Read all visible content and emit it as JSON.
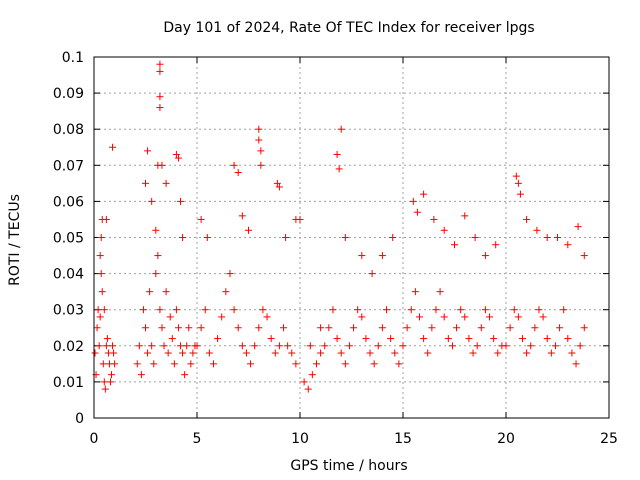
{
  "chart_data": {
    "type": "scatter",
    "title": "Day 101 of 2024, Rate Of TEC Index for receiver lpgs",
    "xlabel": "GPS time / hours",
    "ylabel": "ROTI / TECUs",
    "xlim": [
      0,
      25
    ],
    "ylim": [
      0,
      0.1
    ],
    "xticks": [
      0,
      5,
      10,
      15,
      20,
      25
    ],
    "yticks": [
      0,
      0.01,
      0.02,
      0.03,
      0.04,
      0.05,
      0.06,
      0.07,
      0.08,
      0.09,
      0.1
    ],
    "xtick_labels": [
      "0",
      "5",
      "10",
      "15",
      "20",
      "25"
    ],
    "ytick_labels": [
      "0",
      "0.01",
      "0.02",
      "0.03",
      "0.04",
      "0.05",
      "0.06",
      "0.07",
      "0.08",
      "0.09",
      "0.1"
    ],
    "grid": true,
    "marker": "+",
    "color": "#ff0000",
    "series": [
      {
        "name": "ROTI",
        "x": [
          0.05,
          0.1,
          0.15,
          0.2,
          0.25,
          0.3,
          0.35,
          0.4,
          0.45,
          0.5,
          0.55,
          0.6,
          0.65,
          0.7,
          0.75,
          0.8,
          0.85,
          0.9,
          0.95,
          1.0,
          0.3,
          0.35,
          0.4,
          0.5,
          0.6,
          0.9,
          2.1,
          2.2,
          2.3,
          2.4,
          2.5,
          2.6,
          2.7,
          2.8,
          2.9,
          3.0,
          3.1,
          3.2,
          3.3,
          3.4,
          3.5,
          3.6,
          3.7,
          3.8,
          3.9,
          4.0,
          4.1,
          4.2,
          4.3,
          4.4,
          4.5,
          4.6,
          4.7,
          4.8,
          4.9,
          2.5,
          2.6,
          2.8,
          3.0,
          3.1,
          3.2,
          3.2,
          3.2,
          3.2,
          3.3,
          3.5,
          4.0,
          4.1,
          4.2,
          4.3,
          5.0,
          5.2,
          5.4,
          5.6,
          5.8,
          6.0,
          6.2,
          6.4,
          6.6,
          6.8,
          7.0,
          7.2,
          7.4,
          7.6,
          7.8,
          8.0,
          8.2,
          8.4,
          8.6,
          8.8,
          9.0,
          9.2,
          9.4,
          9.6,
          9.8,
          5.2,
          5.5,
          6.8,
          7.0,
          7.2,
          7.5,
          8.0,
          8.0,
          8.1,
          8.1,
          8.9,
          9.0,
          9.3,
          9.8,
          10.0,
          10.2,
          10.4,
          10.6,
          10.8,
          11.0,
          11.2,
          11.4,
          11.6,
          11.8,
          12.0,
          12.2,
          12.4,
          12.6,
          12.8,
          13.0,
          13.2,
          13.4,
          13.6,
          13.8,
          14.0,
          14.2,
          14.4,
          14.6,
          14.8,
          10.5,
          11.0,
          11.8,
          11.9,
          12.0,
          12.2,
          13.0,
          13.5,
          14.0,
          14.5,
          15.0,
          15.2,
          15.4,
          15.6,
          15.8,
          16.0,
          16.2,
          16.4,
          16.6,
          16.8,
          17.0,
          17.2,
          17.4,
          17.6,
          17.8,
          18.0,
          18.2,
          18.4,
          18.6,
          18.8,
          19.0,
          19.2,
          19.4,
          19.6,
          19.8,
          15.5,
          15.7,
          16.0,
          16.5,
          17.0,
          17.5,
          18.0,
          18.5,
          19.0,
          19.5,
          20.0,
          20.2,
          20.4,
          20.6,
          20.8,
          21.0,
          21.2,
          21.4,
          21.6,
          21.8,
          22.0,
          22.2,
          22.4,
          22.6,
          22.8,
          23.0,
          23.2,
          23.4,
          23.6,
          23.8,
          20.5,
          20.6,
          20.7,
          21.0,
          21.5,
          22.0,
          22.5,
          23.0,
          23.5,
          23.8
        ],
        "y": [
          0.018,
          0.012,
          0.025,
          0.03,
          0.02,
          0.045,
          0.05,
          0.035,
          0.015,
          0.01,
          0.008,
          0.02,
          0.022,
          0.018,
          0.015,
          0.01,
          0.012,
          0.02,
          0.018,
          0.015,
          0.028,
          0.04,
          0.055,
          0.03,
          0.055,
          0.075,
          0.015,
          0.02,
          0.012,
          0.03,
          0.025,
          0.018,
          0.035,
          0.02,
          0.015,
          0.04,
          0.045,
          0.03,
          0.025,
          0.02,
          0.035,
          0.018,
          0.028,
          0.022,
          0.015,
          0.03,
          0.025,
          0.02,
          0.018,
          0.012,
          0.02,
          0.025,
          0.015,
          0.018,
          0.02,
          0.065,
          0.074,
          0.06,
          0.052,
          0.07,
          0.098,
          0.096,
          0.089,
          0.086,
          0.07,
          0.065,
          0.073,
          0.072,
          0.06,
          0.05,
          0.02,
          0.025,
          0.03,
          0.018,
          0.015,
          0.022,
          0.028,
          0.035,
          0.04,
          0.03,
          0.025,
          0.02,
          0.018,
          0.015,
          0.02,
          0.025,
          0.03,
          0.028,
          0.022,
          0.018,
          0.02,
          0.025,
          0.02,
          0.018,
          0.015,
          0.055,
          0.05,
          0.07,
          0.068,
          0.056,
          0.052,
          0.08,
          0.077,
          0.074,
          0.07,
          0.065,
          0.064,
          0.05,
          0.055,
          0.055,
          0.01,
          0.008,
          0.012,
          0.015,
          0.018,
          0.02,
          0.025,
          0.03,
          0.022,
          0.018,
          0.015,
          0.02,
          0.025,
          0.03,
          0.028,
          0.022,
          0.018,
          0.015,
          0.02,
          0.025,
          0.03,
          0.022,
          0.018,
          0.015,
          0.02,
          0.025,
          0.073,
          0.069,
          0.08,
          0.05,
          0.045,
          0.04,
          0.045,
          0.05,
          0.02,
          0.025,
          0.03,
          0.035,
          0.028,
          0.022,
          0.018,
          0.025,
          0.03,
          0.035,
          0.028,
          0.022,
          0.02,
          0.025,
          0.03,
          0.028,
          0.022,
          0.018,
          0.02,
          0.025,
          0.03,
          0.028,
          0.022,
          0.018,
          0.02,
          0.06,
          0.057,
          0.062,
          0.055,
          0.052,
          0.048,
          0.056,
          0.05,
          0.045,
          0.048,
          0.02,
          0.025,
          0.03,
          0.028,
          0.022,
          0.018,
          0.02,
          0.025,
          0.03,
          0.028,
          0.022,
          0.018,
          0.02,
          0.025,
          0.03,
          0.022,
          0.018,
          0.015,
          0.02,
          0.025,
          0.067,
          0.065,
          0.062,
          0.055,
          0.052,
          0.05,
          0.05,
          0.048,
          0.053,
          0.045
        ]
      }
    ]
  }
}
